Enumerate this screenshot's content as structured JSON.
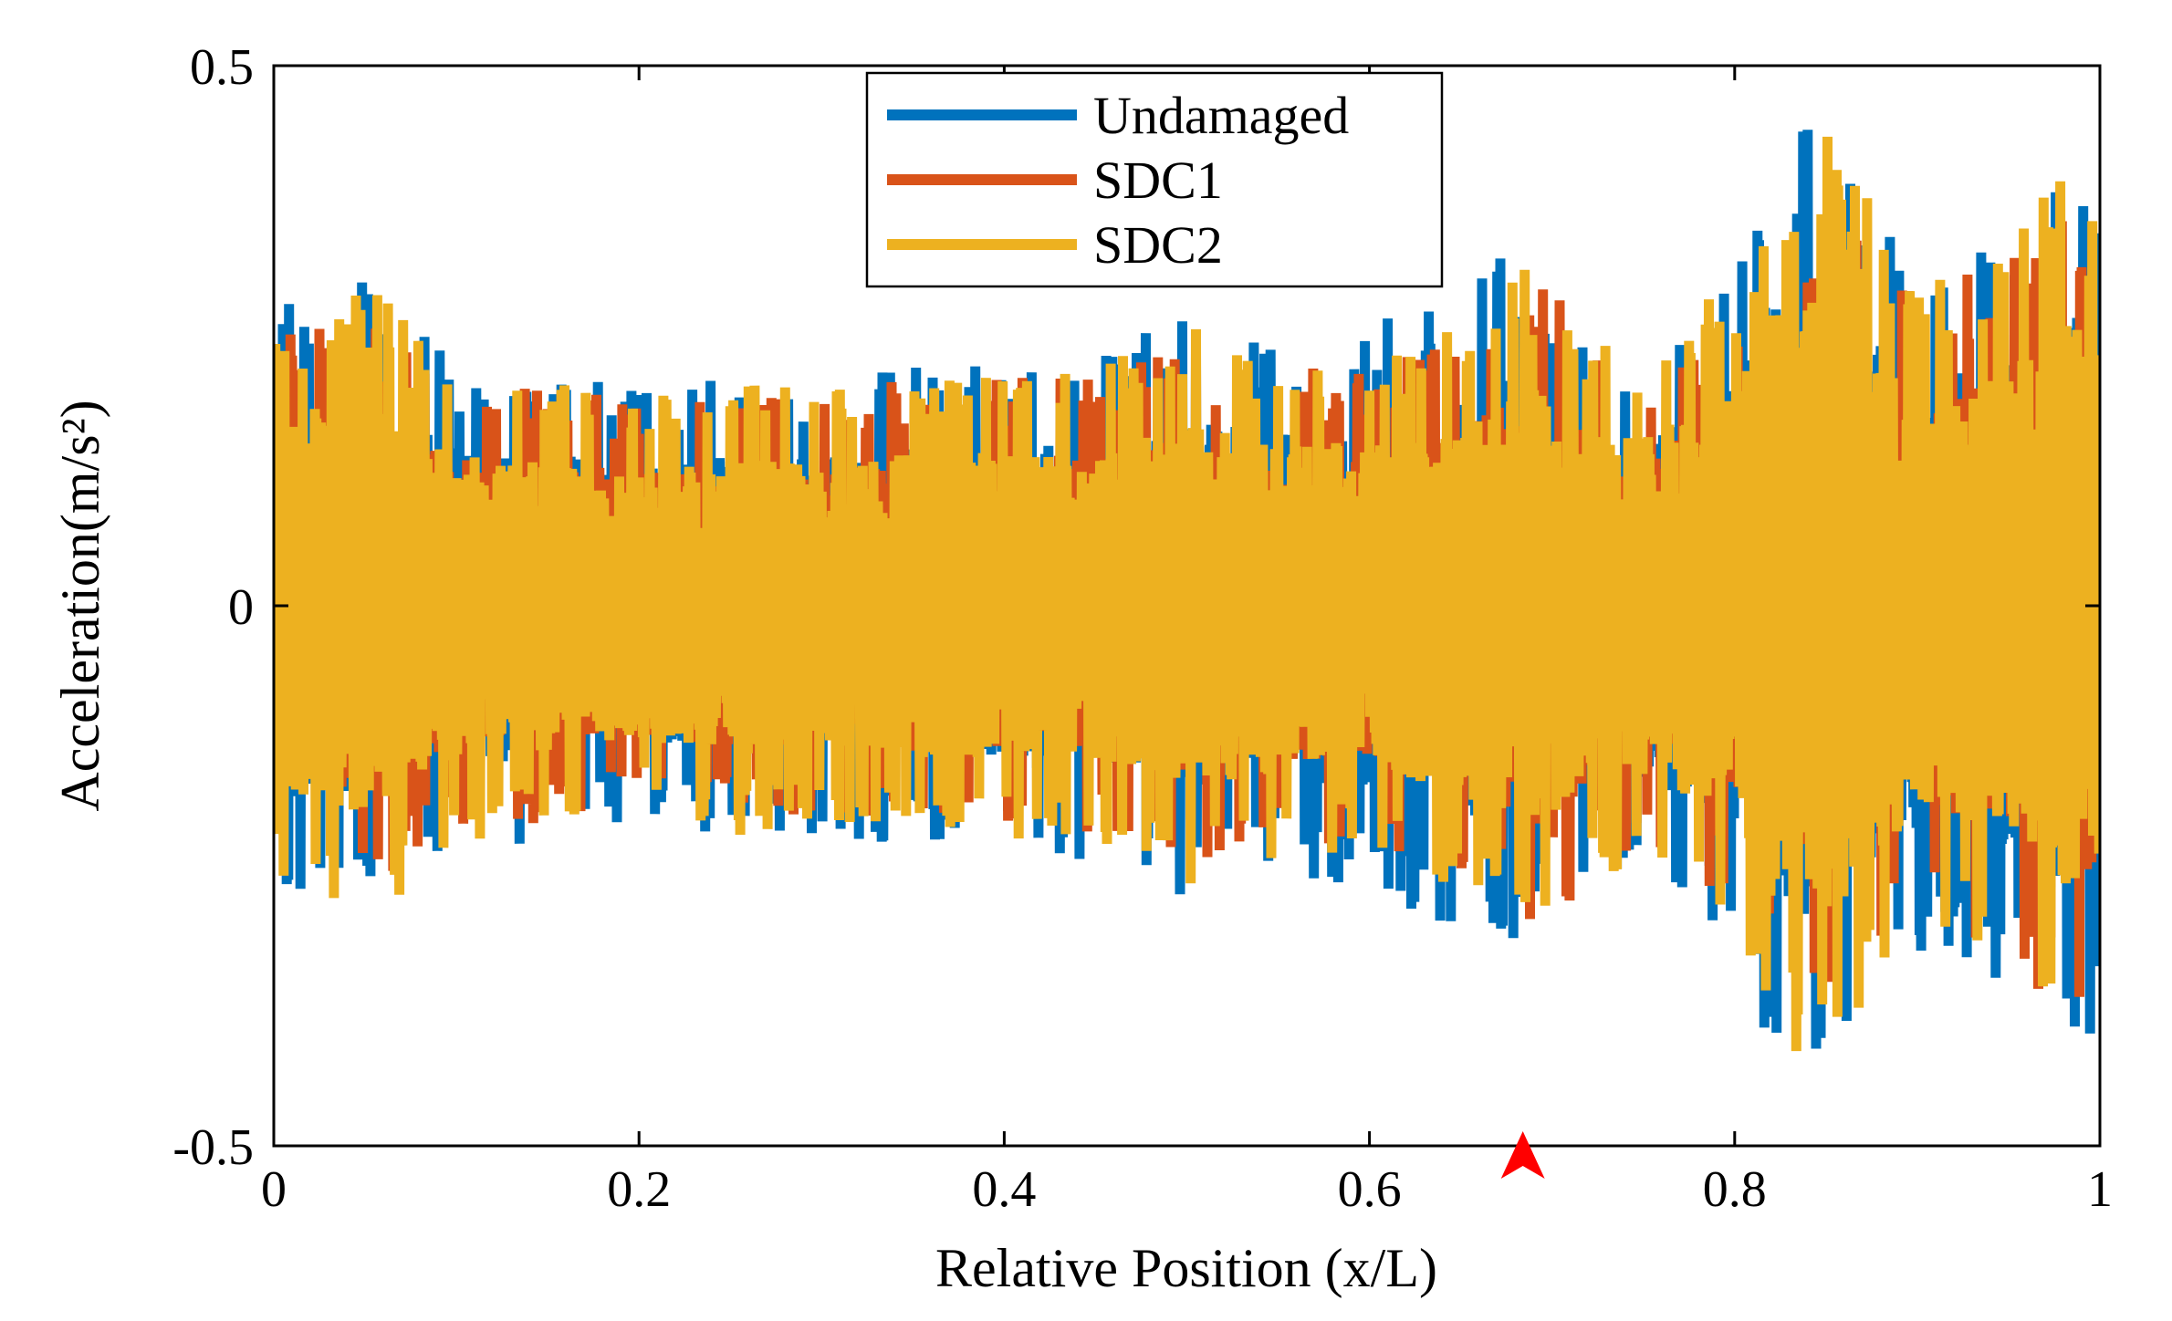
{
  "chart_data": {
    "type": "line",
    "title": "",
    "xlabel": "Relative Position (x/L)",
    "ylabel": "Acceleration(m/s²)",
    "xlim": [
      0,
      1
    ],
    "ylim": [
      -0.5,
      0.5
    ],
    "xticks": [
      0,
      0.2,
      0.4,
      0.6,
      0.8,
      1
    ],
    "xtick_labels": [
      "0",
      "0.2",
      "0.4",
      "0.6",
      "0.8",
      "1"
    ],
    "yticks": [
      -0.5,
      0,
      0.5
    ],
    "ytick_labels": [
      "-0.5",
      "0",
      "0.5"
    ],
    "grid": false,
    "legend_position": "top-center",
    "damage_marker": {
      "x": 0.684,
      "shape": "red-arrowhead",
      "color": "#ff0000"
    },
    "envelope_x": [
      0,
      0.05,
      0.1,
      0.15,
      0.2,
      0.25,
      0.3,
      0.35,
      0.4,
      0.45,
      0.5,
      0.55,
      0.6,
      0.62,
      0.65,
      0.68,
      0.7,
      0.72,
      0.75,
      0.8,
      0.82,
      0.85,
      0.9,
      0.95,
      0.98,
      1
    ],
    "series": [
      {
        "name": "Undamaged",
        "color": "#0072BD",
        "amplitude_envelope": [
          0.28,
          0.3,
          0.23,
          0.22,
          0.2,
          0.22,
          0.21,
          0.23,
          0.23,
          0.24,
          0.27,
          0.25,
          0.26,
          0.28,
          0.3,
          0.33,
          0.28,
          0.25,
          0.25,
          0.32,
          0.45,
          0.44,
          0.33,
          0.35,
          0.43,
          0.4
        ],
        "peak_max": 0.45,
        "peak_min": -0.44
      },
      {
        "name": "SDC1",
        "color": "#D95319",
        "amplitude_envelope": [
          0.25,
          0.27,
          0.21,
          0.21,
          0.19,
          0.2,
          0.2,
          0.21,
          0.21,
          0.22,
          0.24,
          0.22,
          0.22,
          0.23,
          0.25,
          0.3,
          0.34,
          0.24,
          0.23,
          0.28,
          0.35,
          0.36,
          0.3,
          0.32,
          0.4,
          0.38
        ],
        "peak_max": 0.4,
        "peak_min": -0.37
      },
      {
        "name": "SDC2",
        "color": "#EDB120",
        "amplitude_envelope": [
          0.27,
          0.3,
          0.22,
          0.21,
          0.19,
          0.22,
          0.2,
          0.22,
          0.22,
          0.22,
          0.26,
          0.24,
          0.23,
          0.25,
          0.27,
          0.32,
          0.3,
          0.25,
          0.25,
          0.3,
          0.42,
          0.45,
          0.3,
          0.33,
          0.42,
          0.36
        ],
        "peak_max": 0.45,
        "peak_min": -0.44
      }
    ]
  }
}
